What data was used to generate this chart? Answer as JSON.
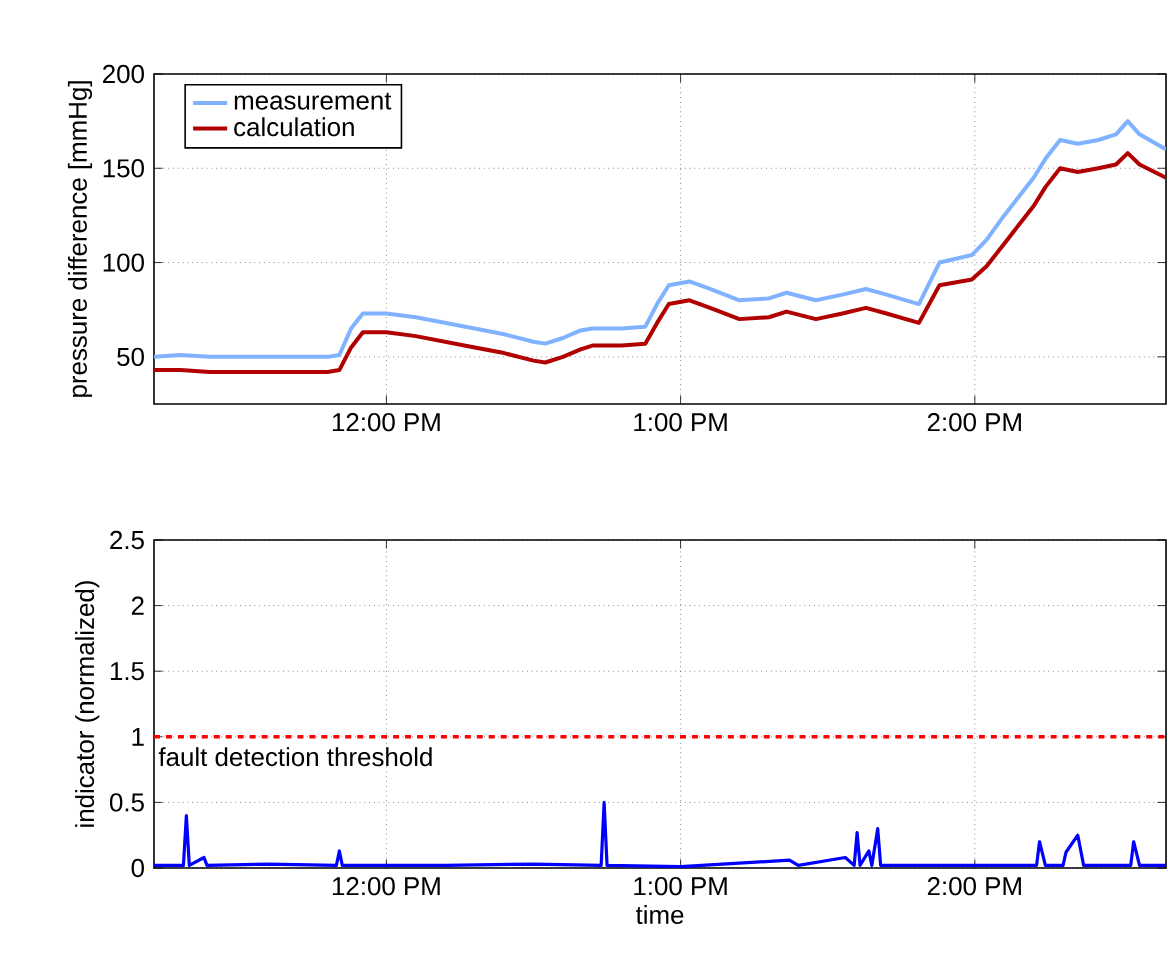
{
  "chart_data": [
    {
      "type": "line",
      "ylabel": "pressure difference [mmHg]",
      "xlim": [
        11.21,
        14.65
      ],
      "xticks": [
        {
          "value": 12,
          "label": "12:00 PM"
        },
        {
          "value": 13,
          "label": "1:00 PM"
        },
        {
          "value": 14,
          "label": "2:00 PM"
        }
      ],
      "ylim": [
        25,
        200
      ],
      "yticks": [
        50,
        100,
        150,
        200
      ],
      "grid": true,
      "legend": "top left",
      "series": [
        {
          "name": "measurement",
          "color": "#80b2ff",
          "x": [
            11.21,
            11.3,
            11.4,
            11.5,
            11.6,
            11.7,
            11.8,
            11.84,
            11.88,
            11.92,
            12.0,
            12.1,
            12.2,
            12.3,
            12.4,
            12.5,
            12.54,
            12.6,
            12.66,
            12.7,
            12.8,
            12.88,
            12.92,
            12.96,
            13.03,
            13.1,
            13.2,
            13.3,
            13.36,
            13.46,
            13.55,
            13.63,
            13.7,
            13.81,
            13.88,
            13.99,
            14.04,
            14.1,
            14.2,
            14.24,
            14.29,
            14.35,
            14.42,
            14.48,
            14.52,
            14.56,
            14.65
          ],
          "values": [
            50,
            51,
            50,
            50,
            50,
            50,
            50,
            51,
            65,
            73,
            73,
            71,
            68,
            65,
            62,
            58,
            57,
            60,
            64,
            65,
            65,
            66,
            78,
            88,
            90,
            86,
            80,
            81,
            84,
            80,
            83,
            86,
            83,
            78,
            100,
            104,
            112,
            125,
            145,
            155,
            165,
            163,
            165,
            168,
            175,
            168,
            160
          ]
        },
        {
          "name": "calculation",
          "color": "#b00000",
          "x": [
            11.21,
            11.3,
            11.4,
            11.5,
            11.6,
            11.7,
            11.8,
            11.84,
            11.88,
            11.92,
            12.0,
            12.1,
            12.2,
            12.3,
            12.4,
            12.5,
            12.54,
            12.6,
            12.66,
            12.7,
            12.8,
            12.88,
            12.92,
            12.96,
            13.03,
            13.1,
            13.2,
            13.3,
            13.36,
            13.46,
            13.55,
            13.63,
            13.7,
            13.81,
            13.88,
            13.99,
            14.04,
            14.1,
            14.2,
            14.24,
            14.29,
            14.35,
            14.42,
            14.48,
            14.52,
            14.56,
            14.65
          ],
          "values": [
            43,
            43,
            42,
            42,
            42,
            42,
            42,
            43,
            55,
            63,
            63,
            61,
            58,
            55,
            52,
            48,
            47,
            50,
            54,
            56,
            56,
            57,
            68,
            78,
            80,
            76,
            70,
            71,
            74,
            70,
            73,
            76,
            73,
            68,
            88,
            91,
            98,
            110,
            130,
            140,
            150,
            148,
            150,
            152,
            158,
            152,
            145
          ]
        }
      ]
    },
    {
      "type": "line",
      "xlabel": "time",
      "ylabel": "indicator (normalized)",
      "xlim": [
        11.21,
        14.65
      ],
      "xticks": [
        {
          "value": 12,
          "label": "12:00 PM"
        },
        {
          "value": 13,
          "label": "1:00 PM"
        },
        {
          "value": 14,
          "label": "2:00 PM"
        }
      ],
      "ylim": [
        0,
        2.5
      ],
      "yticks": [
        0,
        0.5,
        1,
        1.5,
        2,
        2.5
      ],
      "grid": true,
      "ref_lines": [
        {
          "axis": "y",
          "value": 1,
          "label": "fault detection threshold",
          "color": "#ff0000",
          "line_style": "dashed"
        }
      ],
      "series": [
        {
          "color": "#0000ff",
          "x": [
            11.21,
            11.31,
            11.32,
            11.33,
            11.38,
            11.39,
            11.6,
            11.83,
            11.84,
            11.85,
            12.2,
            12.5,
            12.73,
            12.74,
            12.75,
            13.0,
            13.37,
            13.4,
            13.56,
            13.59,
            13.6,
            13.61,
            13.64,
            13.65,
            13.67,
            13.68,
            14.0,
            14.21,
            14.22,
            14.24,
            14.3,
            14.31,
            14.35,
            14.37,
            14.53,
            14.54,
            14.56,
            14.65
          ],
          "values": [
            0.02,
            0.02,
            0.4,
            0.02,
            0.08,
            0.02,
            0.03,
            0.02,
            0.13,
            0.02,
            0.02,
            0.03,
            0.02,
            0.5,
            0.02,
            0.01,
            0.06,
            0.02,
            0.08,
            0.02,
            0.27,
            0.02,
            0.13,
            0.02,
            0.3,
            0.02,
            0.02,
            0.02,
            0.2,
            0.02,
            0.02,
            0.12,
            0.25,
            0.02,
            0.02,
            0.2,
            0.02,
            0.02
          ]
        }
      ]
    }
  ]
}
